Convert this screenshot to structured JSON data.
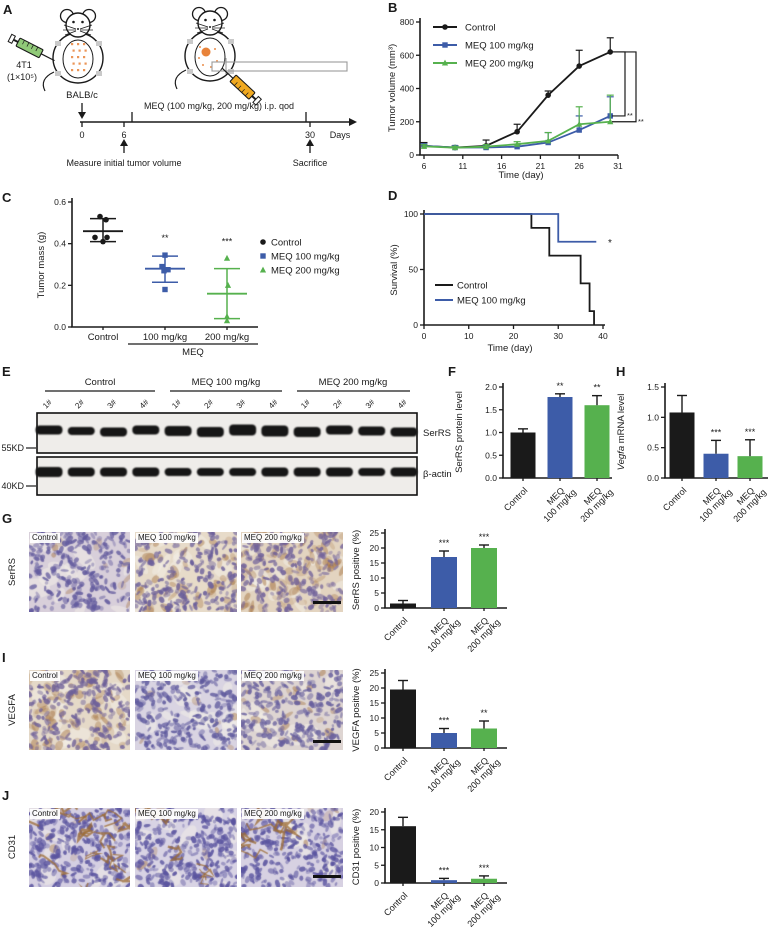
{
  "figure": {
    "panel_labels": {
      "A": "A",
      "B": "B",
      "C": "C",
      "D": "D",
      "E": "E",
      "F": "F",
      "G": "G",
      "H": "H",
      "I": "I",
      "J": "J"
    }
  },
  "colors": {
    "control": "#1a1a1a",
    "meq100": "#3d5ca8",
    "meq200": "#56b14e",
    "cells_orange": "#e8833a",
    "syringe_green": "#90c978",
    "syringe_orange": "#f0a921",
    "brown_stain": "#a3703d"
  },
  "panel_a": {
    "cell_line": "4T1",
    "cell_count": "(1×10⁵)",
    "strain": "BALB/c",
    "treatment": "MEQ (100 mg/kg, 200 mg/kg) i.p. qod",
    "timeline_ticks": [
      "0",
      "6",
      "30"
    ],
    "days_label": "Days",
    "measure_label": "Measure initial tumor volume",
    "sacrifice_label": "Sacrifice"
  },
  "panel_e": {
    "groups": [
      "Control",
      "MEQ 100 mg/kg",
      "MEQ 200 mg/kg"
    ],
    "lanes": [
      "1#",
      "2#",
      "3#",
      "4#"
    ],
    "markers": [
      "55KD",
      "40KD"
    ],
    "proteins": [
      "SerRS",
      "β-actin"
    ]
  },
  "histology": {
    "rows": [
      {
        "id": "G",
        "row_label": "SerRS",
        "images": [
          {
            "label": "Control",
            "stain": {
              "bg": "#d8cfda",
              "nuclei": "#635b9e",
              "brown": 0.06,
              "streaks": 0,
              "n": 250
            }
          },
          {
            "label": "MEQ 100 mg/kg",
            "stain": {
              "bg": "#e7dbc9",
              "nuclei": "#6b5f9b",
              "brown": 0.33,
              "streaks": 0,
              "n": 230
            }
          },
          {
            "label": "MEQ 200 mg/kg",
            "stain": {
              "bg": "#e3d4c0",
              "nuclei": "#70619a",
              "brown": 0.5,
              "streaks": 0,
              "n": 230
            }
          }
        ]
      },
      {
        "id": "I",
        "row_label": "VEGFA",
        "images": [
          {
            "label": "Control",
            "stain": {
              "bg": "#e5d9c8",
              "nuclei": "#6e6099",
              "brown": 0.45,
              "streaks": 0,
              "n": 230
            }
          },
          {
            "label": "MEQ 100 mg/kg",
            "stain": {
              "bg": "#d9d4e2",
              "nuclei": "#5f5a9e",
              "brown": 0.05,
              "streaks": 0,
              "n": 270
            }
          },
          {
            "label": "MEQ 200 mg/kg",
            "stain": {
              "bg": "#ded5d2",
              "nuclei": "#665e9d",
              "brown": 0.14,
              "streaks": 0,
              "n": 250
            }
          }
        ]
      },
      {
        "id": "J",
        "row_label": "CD31",
        "images": [
          {
            "label": "Control",
            "stain": {
              "bg": "#d5cfe2",
              "nuclei": "#5b55a0",
              "brown": 0.05,
              "streaks": 16,
              "n": 300
            }
          },
          {
            "label": "MEQ 100 mg/kg",
            "stain": {
              "bg": "#d8d3e4",
              "nuclei": "#5b55a0",
              "brown": 0.03,
              "streaks": 5,
              "n": 300
            }
          },
          {
            "label": "MEQ 200 mg/kg",
            "stain": {
              "bg": "#d7d1e2",
              "nuclei": "#5b55a0",
              "brown": 0.04,
              "streaks": 7,
              "n": 300
            }
          }
        ]
      }
    ]
  },
  "chart_data": [
    {
      "id": "B",
      "type": "line",
      "xlabel": "Time (day)",
      "ylabel": "Tumor volume (mm³)",
      "xlim": [
        6,
        31
      ],
      "xticks": [
        6,
        11,
        16,
        21,
        26,
        31
      ],
      "ylim": [
        0,
        800
      ],
      "yticks": [
        0,
        200,
        400,
        600,
        800
      ],
      "x": [
        6,
        10,
        14,
        18,
        22,
        26,
        30
      ],
      "series": [
        {
          "name": "Control",
          "color": "#1a1a1a",
          "marker": "circle",
          "values": [
            55,
            45,
            55,
            140,
            360,
            535,
            620
          ],
          "errors": [
            20,
            10,
            35,
            45,
            25,
            95,
            85
          ]
        },
        {
          "name": "MEQ 100 mg/kg",
          "color": "#3d5ca8",
          "marker": "square",
          "values": [
            55,
            45,
            45,
            50,
            75,
            150,
            235
          ],
          "errors": [
            12,
            8,
            10,
            12,
            60,
            85,
            115
          ]
        },
        {
          "name": "MEQ 200 mg/kg",
          "color": "#56b14e",
          "marker": "triangle",
          "values": [
            52,
            44,
            50,
            65,
            85,
            185,
            200
          ],
          "errors": [
            10,
            8,
            12,
            15,
            50,
            105,
            160
          ]
        }
      ],
      "sig_brackets": [
        {
          "series": 1,
          "label": "**"
        },
        {
          "series": 2,
          "label": "**"
        }
      ],
      "legend_position": "top-left",
      "grid": false
    },
    {
      "id": "C",
      "type": "scatter",
      "ylabel": "Tumor mass (g)",
      "ylim": [
        0,
        0.6
      ],
      "yticks": [
        0,
        0.2,
        0.4,
        0.6
      ],
      "ytick_labels": [
        "0.0",
        "0.2",
        "0.4",
        "0.6"
      ],
      "group_axis_label": "MEQ",
      "groups": [
        {
          "name": "Control",
          "tick": "Control",
          "color": "#1a1a1a",
          "marker": "circle",
          "points": [
            0.53,
            0.515,
            0.43,
            0.43,
            0.41
          ],
          "jitter": [
            -3,
            3,
            -8,
            4,
            0
          ],
          "mean": 0.46,
          "err_top": 0.52,
          "err_bot": 0.41,
          "sig": ""
        },
        {
          "name": "MEQ 100 mg/kg",
          "tick": "100 mg/kg",
          "color": "#3d5ca8",
          "marker": "square",
          "points": [
            0.345,
            0.29,
            0.275,
            0.27,
            0.18
          ],
          "jitter": [
            0,
            -3,
            3,
            -1,
            0
          ],
          "mean": 0.28,
          "err_top": 0.34,
          "err_bot": 0.215,
          "sig": "**"
        },
        {
          "name": "MEQ 200 mg/kg",
          "tick": "200 mg/kg",
          "color": "#56b14e",
          "marker": "triangle",
          "points": [
            0.33,
            0.2,
            0.05,
            0.03
          ],
          "jitter": [
            0,
            1,
            0,
            0
          ],
          "mean": 0.16,
          "err_top": 0.28,
          "err_bot": 0.04,
          "sig": "***"
        }
      ],
      "legend": [
        "Control",
        "MEQ 100 mg/kg",
        "MEQ 200 mg/kg"
      ],
      "grid": false
    },
    {
      "id": "D",
      "type": "survival",
      "xlabel": "Time (day)",
      "ylabel": "Survival (%)",
      "xlim": [
        0,
        40
      ],
      "xticks": [
        0,
        10,
        20,
        30,
        40
      ],
      "ylim": [
        0,
        100
      ],
      "yticks": [
        0,
        50,
        100
      ],
      "series": [
        {
          "name": "Control",
          "color": "#1a1a1a",
          "steps": [
            [
              0,
              100
            ],
            [
              24,
              100
            ],
            [
              24,
              87.5
            ],
            [
              28,
              87.5
            ],
            [
              28,
              62.5
            ],
            [
              35,
              62.5
            ],
            [
              35,
              37.5
            ],
            [
              37,
              37.5
            ],
            [
              37,
              12.5
            ],
            [
              38,
              12.5
            ],
            [
              38,
              0
            ]
          ]
        },
        {
          "name": "MEQ 100 mg/kg",
          "color": "#3d5ca8",
          "steps": [
            [
              0,
              100
            ],
            [
              30,
              100
            ],
            [
              30,
              75
            ],
            [
              38.5,
              75
            ]
          ]
        }
      ],
      "sig": "*",
      "legend_position": "inside-left",
      "grid": false
    },
    {
      "id": "F",
      "type": "bar",
      "ylabel": "SerRS protein level",
      "ylim": [
        0,
        2
      ],
      "yticks": [
        0,
        0.5,
        1,
        1.5,
        2
      ],
      "ytick_labels": [
        "0.0",
        "0.5",
        "1.0",
        "1.5",
        "2.0"
      ],
      "categories": [
        "Control",
        "MEQ\n100 mg/kg",
        "MEQ\n200 mg/kg"
      ],
      "values": [
        1.0,
        1.78,
        1.6
      ],
      "errors": [
        0.08,
        0.07,
        0.21
      ],
      "sig": [
        "",
        "**",
        "**"
      ],
      "grid": false
    },
    {
      "id": "H",
      "type": "bar",
      "ylabel": "Vegfa mRNA level",
      "ylabel_italic": "Vegfa",
      "ylabel_rest": " mRNA level",
      "ylim": [
        0,
        1.5
      ],
      "yticks": [
        0,
        0.5,
        1,
        1.5
      ],
      "ytick_labels": [
        "0.0",
        "0.5",
        "1.0",
        "1.5"
      ],
      "categories": [
        "Control",
        "MEQ\n100 mg/kg",
        "MEQ\n200 mg/kg"
      ],
      "values": [
        1.08,
        0.4,
        0.36
      ],
      "errors": [
        0.28,
        0.22,
        0.27
      ],
      "sig": [
        "",
        "***",
        "***"
      ],
      "grid": false
    },
    {
      "id": "G",
      "type": "bar",
      "ylabel": "SerRS positive (%)",
      "ylim": [
        0,
        25
      ],
      "yticks": [
        0,
        5,
        10,
        15,
        20,
        25
      ],
      "ytick_labels": [
        "0",
        "5",
        "10",
        "15",
        "20",
        "25"
      ],
      "categories": [
        "Control",
        "MEQ\n100 mg/kg",
        "MEQ\n200 mg/kg"
      ],
      "values": [
        1.5,
        17,
        20
      ],
      "errors": [
        1,
        2,
        1
      ],
      "sig": [
        "",
        "***",
        "***"
      ],
      "grid": false
    },
    {
      "id": "I",
      "type": "bar",
      "ylabel": "VEGFA positive (%)",
      "ylim": [
        0,
        25
      ],
      "yticks": [
        0,
        5,
        10,
        15,
        20,
        25
      ],
      "ytick_labels": [
        "0",
        "5",
        "10",
        "15",
        "20",
        "25"
      ],
      "categories": [
        "Control",
        "MEQ\n100 mg/kg",
        "MEQ\n200 mg/kg"
      ],
      "values": [
        19.5,
        5,
        6.5
      ],
      "errors": [
        3,
        1.5,
        2.5
      ],
      "sig": [
        "",
        "***",
        "**"
      ],
      "grid": false
    },
    {
      "id": "J",
      "type": "bar",
      "ylabel": "CD31 positive (%)",
      "ylim": [
        0,
        20
      ],
      "yticks": [
        0,
        5,
        10,
        15,
        20
      ],
      "ytick_labels": [
        "0",
        "5",
        "10",
        "15",
        "20"
      ],
      "categories": [
        "Control",
        "MEQ\n100 mg/kg",
        "MEQ\n200 mg/kg"
      ],
      "values": [
        16,
        0.8,
        1.2
      ],
      "errors": [
        2.5,
        0.5,
        0.8
      ],
      "sig": [
        "",
        "***",
        "***"
      ],
      "grid": false
    }
  ]
}
